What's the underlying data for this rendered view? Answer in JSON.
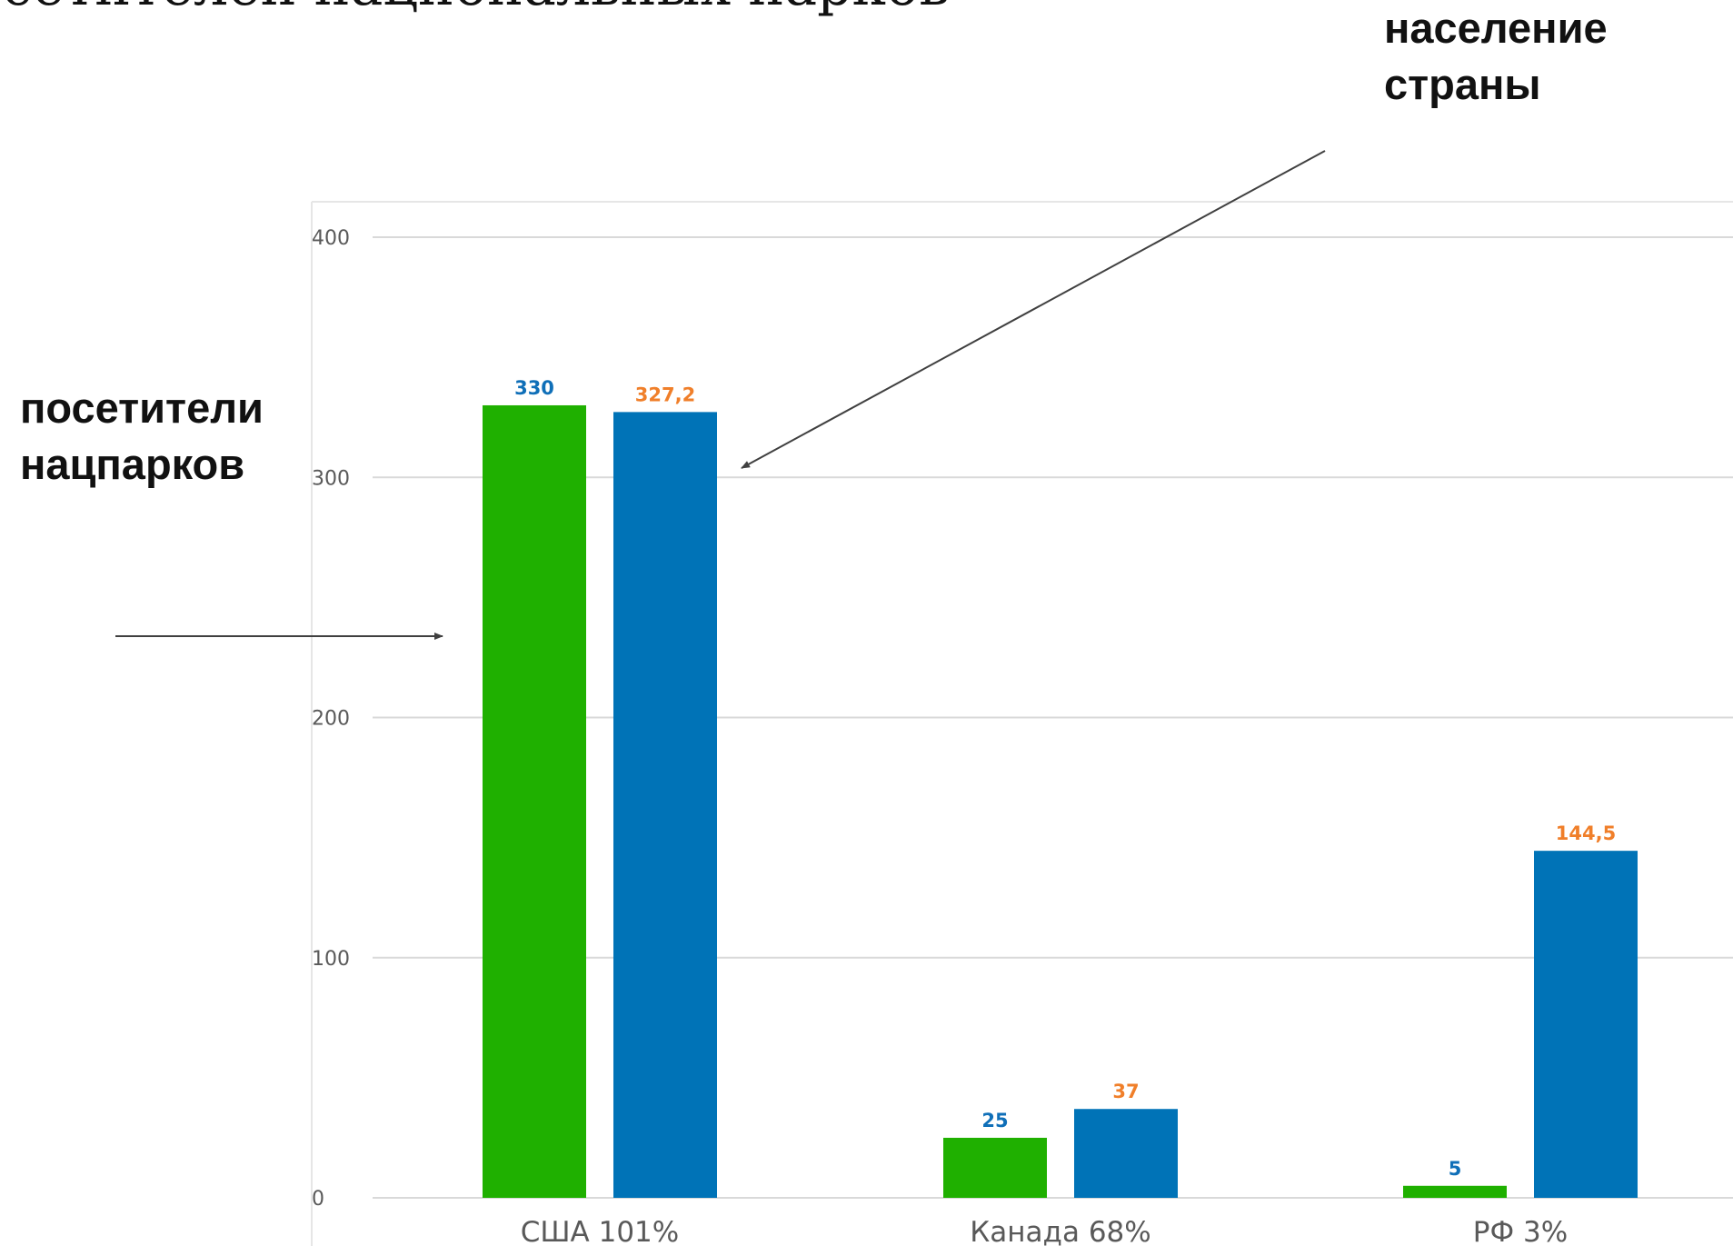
{
  "title": "сетителей национальных парков",
  "annotations": {
    "population": [
      "население",
      "страны"
    ],
    "visitors": [
      "посетители",
      "нацпарков"
    ]
  },
  "colors": {
    "visitors_bar": "#1fb000",
    "population_bar": "#0073b7",
    "visitors_label": "#0f6fb8",
    "population_label": "#f07f2a",
    "grid": "#d9d9d9",
    "axis_text": "#595959",
    "arrow": "#404040"
  },
  "chart_data": {
    "type": "bar",
    "categories": [
      "США 101%",
      "Канада 68%",
      "РФ 3%"
    ],
    "series": [
      {
        "values": [
          330,
          25,
          5
        ],
        "data_labels": [
          "330",
          "25",
          "5"
        ]
      },
      {
        "values": [
          327.2,
          37,
          144.5
        ],
        "data_labels": [
          "327,2",
          "37",
          "144,5"
        ]
      }
    ],
    "yticks": [
      "0",
      "100",
      "200",
      "300",
      "400"
    ],
    "ylim": [
      0,
      400
    ],
    "grid": true,
    "legend": "none"
  }
}
